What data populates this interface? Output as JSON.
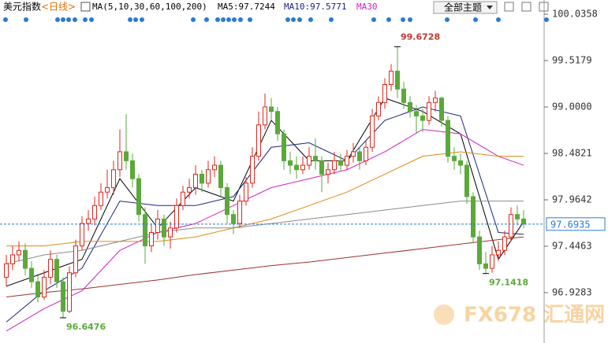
{
  "chart_data": {
    "type": "candlestick",
    "title": "美元指数",
    "period": "<日线>",
    "ma_label": "MA(5,10,30,60,100,200)",
    "ma_values": [
      "MA5:97.7244",
      "MA10:97.5771",
      "MA30"
    ],
    "theme_select": "全部主题",
    "watermark": "FX678 汇通网",
    "ylim": [
      96.3665,
      100.1938
    ],
    "yticks": [
      100.0358,
      99.5179,
      {
        "value": 99.0,
        "label": "99.0000"
      },
      98.4821,
      97.9642,
      97.4463,
      96.9283
    ],
    "last_price": 97.6935,
    "annotations": {
      "high": 99.6728,
      "low": 96.6476,
      "recent_low": 97.1418
    },
    "up_color": "#e0261c",
    "down_color": "#5aa93a",
    "ohlc": [
      [
        97.1,
        97.35,
        97.0,
        97.25
      ],
      [
        97.25,
        97.45,
        97.18,
        97.35
      ],
      [
        97.35,
        97.5,
        97.28,
        97.4
      ],
      [
        97.4,
        97.48,
        97.12,
        97.2
      ],
      [
        97.2,
        97.28,
        96.98,
        97.05
      ],
      [
        97.05,
        97.12,
        96.82,
        96.88
      ],
      [
        96.88,
        97.18,
        96.85,
        97.1
      ],
      [
        97.1,
        97.4,
        97.02,
        97.3
      ],
      [
        97.3,
        97.35,
        96.98,
        97.05
      ],
      [
        97.05,
        97.1,
        96.6476,
        96.72
      ],
      [
        96.72,
        97.22,
        96.7,
        97.15
      ],
      [
        97.15,
        97.52,
        97.1,
        97.45
      ],
      [
        97.45,
        97.78,
        97.4,
        97.7
      ],
      [
        97.7,
        97.85,
        97.62,
        97.75
      ],
      [
        97.75,
        98.0,
        97.68,
        97.9
      ],
      [
        97.9,
        98.15,
        97.85,
        98.05
      ],
      [
        98.05,
        98.3,
        97.98,
        98.1
      ],
      [
        98.1,
        98.4,
        98.02,
        98.3
      ],
      [
        98.3,
        98.75,
        98.22,
        98.5
      ],
      [
        98.5,
        98.92,
        98.3,
        98.4
      ],
      [
        98.4,
        98.48,
        98.1,
        98.2
      ],
      [
        98.2,
        98.25,
        97.72,
        97.8
      ],
      [
        97.8,
        97.88,
        97.25,
        97.45
      ],
      [
        97.45,
        97.7,
        97.38,
        97.6
      ],
      [
        97.6,
        97.85,
        97.52,
        97.75
      ],
      [
        97.75,
        97.8,
        97.45,
        97.55
      ],
      [
        97.55,
        97.72,
        97.42,
        97.65
      ],
      [
        97.65,
        97.98,
        97.6,
        97.9
      ],
      [
        97.9,
        98.12,
        97.85,
        98.05
      ],
      [
        98.05,
        98.2,
        97.98,
        98.1
      ],
      [
        98.1,
        98.35,
        98.02,
        98.25
      ],
      [
        98.25,
        98.3,
        98.05,
        98.15
      ],
      [
        98.15,
        98.4,
        98.1,
        98.3
      ],
      [
        98.3,
        98.45,
        98.22,
        98.35
      ],
      [
        98.35,
        98.4,
        98.0,
        98.1
      ],
      [
        98.1,
        98.15,
        97.7,
        97.8
      ],
      [
        97.8,
        97.85,
        97.58,
        97.7
      ],
      [
        97.7,
        98.02,
        97.65,
        97.95
      ],
      [
        97.95,
        98.22,
        97.9,
        98.15
      ],
      [
        98.15,
        98.55,
        98.1,
        98.45
      ],
      [
        98.45,
        98.95,
        98.4,
        98.8
      ],
      [
        98.8,
        99.15,
        98.75,
        99.0
      ],
      [
        99.0,
        99.1,
        98.85,
        98.95
      ],
      [
        98.95,
        99.0,
        98.62,
        98.7
      ],
      [
        98.7,
        98.75,
        98.3,
        98.4
      ],
      [
        98.4,
        98.5,
        98.25,
        98.35
      ],
      [
        98.35,
        98.45,
        98.2,
        98.3
      ],
      [
        98.3,
        98.45,
        98.25,
        98.35
      ],
      [
        98.35,
        98.55,
        98.3,
        98.45
      ],
      [
        98.45,
        98.65,
        98.3,
        98.4
      ],
      [
        98.4,
        98.45,
        98.05,
        98.25
      ],
      [
        98.25,
        98.38,
        98.15,
        98.3
      ],
      [
        98.3,
        98.5,
        98.25,
        98.4
      ],
      [
        98.4,
        98.48,
        98.28,
        98.35
      ],
      [
        98.35,
        98.52,
        98.3,
        98.45
      ],
      [
        98.45,
        98.6,
        98.38,
        98.5
      ],
      [
        98.5,
        98.55,
        98.3,
        98.4
      ],
      [
        98.4,
        98.62,
        98.35,
        98.55
      ],
      [
        98.55,
        98.98,
        98.5,
        98.9
      ],
      [
        98.9,
        99.12,
        98.85,
        99.05
      ],
      [
        99.05,
        99.32,
        98.98,
        99.25
      ],
      [
        99.25,
        99.48,
        99.18,
        99.4
      ],
      [
        99.4,
        99.6728,
        99.1,
        99.2
      ],
      [
        99.2,
        99.28,
        98.98,
        99.05
      ],
      [
        99.05,
        99.12,
        98.88,
        98.95
      ],
      [
        98.95,
        99.02,
        98.7,
        98.9
      ],
      [
        98.9,
        98.98,
        98.72,
        98.85
      ],
      [
        98.85,
        99.12,
        98.8,
        99.05
      ],
      [
        99.05,
        99.18,
        98.95,
        99.1
      ],
      [
        99.1,
        99.12,
        98.78,
        98.85
      ],
      [
        98.85,
        98.9,
        98.38,
        98.45
      ],
      [
        98.45,
        98.55,
        98.3,
        98.4
      ],
      [
        98.4,
        98.48,
        98.25,
        98.35
      ],
      [
        98.35,
        98.4,
        97.92,
        98.0
      ],
      [
        98.0,
        98.05,
        97.48,
        97.55
      ],
      [
        97.55,
        97.62,
        97.18,
        97.25
      ],
      [
        97.25,
        97.38,
        97.1418,
        97.2
      ],
      [
        97.2,
        97.45,
        97.15,
        97.35
      ],
      [
        97.35,
        97.5,
        97.28,
        97.4
      ],
      [
        97.4,
        97.62,
        97.35,
        97.55
      ],
      [
        97.55,
        97.88,
        97.5,
        97.8
      ],
      [
        97.8,
        97.9,
        97.68,
        97.75
      ],
      [
        97.75,
        97.85,
        97.65,
        97.6935
      ]
    ],
    "ma_x": [
      0,
      6,
      12,
      18,
      24,
      30,
      36,
      42,
      48,
      54,
      60,
      66,
      72,
      78,
      82
    ],
    "series": [
      {
        "name": "MA5",
        "color": "#000000",
        "values": [
          97.0,
          97.15,
          97.3,
          98.2,
          97.65,
          98.1,
          97.95,
          98.85,
          98.4,
          98.4,
          99.1,
          98.95,
          98.7,
          97.3,
          97.72
        ]
      },
      {
        "name": "MA10",
        "color": "#1a237e",
        "values": [
          96.6,
          96.95,
          97.2,
          97.95,
          97.9,
          97.9,
          98.0,
          98.55,
          98.6,
          98.4,
          98.85,
          99.0,
          98.9,
          97.6,
          97.58
        ]
      },
      {
        "name": "MA30",
        "color": "#d020c8",
        "values": [
          96.5,
          96.75,
          96.95,
          97.4,
          97.6,
          97.7,
          97.9,
          98.1,
          98.2,
          98.3,
          98.5,
          98.75,
          98.7,
          98.45,
          98.35
        ]
      },
      {
        "name": "MA60",
        "color": "#e08a10",
        "values": [
          97.45,
          97.45,
          97.5,
          97.5,
          97.5,
          97.55,
          97.65,
          97.75,
          97.9,
          98.05,
          98.25,
          98.45,
          98.5,
          98.45,
          98.45
        ]
      },
      {
        "name": "MA100",
        "color": "#8a8a8a",
        "values": [
          97.25,
          97.35,
          97.4,
          97.5,
          97.6,
          97.65,
          97.65,
          97.7,
          97.75,
          97.8,
          97.85,
          97.9,
          97.95,
          97.95,
          97.95
        ]
      },
      {
        "name": "MA200",
        "color": "#a0302a",
        "values": [
          96.88,
          96.93,
          96.97,
          97.02,
          97.07,
          97.13,
          97.18,
          97.23,
          97.27,
          97.32,
          97.37,
          97.42,
          97.47,
          97.52,
          97.55
        ]
      }
    ]
  }
}
